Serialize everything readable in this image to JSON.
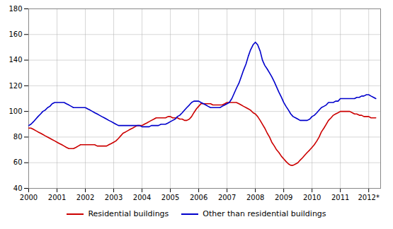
{
  "chart_data": {
    "type": "line",
    "x": [
      2000.0,
      2000.08,
      2000.17,
      2000.25,
      2000.33,
      2000.42,
      2000.5,
      2000.58,
      2000.67,
      2000.75,
      2000.83,
      2000.92,
      2001.0,
      2001.08,
      2001.17,
      2001.25,
      2001.33,
      2001.42,
      2001.5,
      2001.58,
      2001.67,
      2001.75,
      2001.83,
      2001.92,
      2002.0,
      2002.08,
      2002.17,
      2002.25,
      2002.33,
      2002.42,
      2002.5,
      2002.58,
      2002.67,
      2002.75,
      2002.83,
      2002.92,
      2003.0,
      2003.08,
      2003.17,
      2003.25,
      2003.33,
      2003.42,
      2003.5,
      2003.58,
      2003.67,
      2003.75,
      2003.83,
      2003.92,
      2004.0,
      2004.08,
      2004.17,
      2004.25,
      2004.33,
      2004.42,
      2004.5,
      2004.58,
      2004.67,
      2004.75,
      2004.83,
      2004.92,
      2005.0,
      2005.08,
      2005.17,
      2005.25,
      2005.33,
      2005.42,
      2005.5,
      2005.58,
      2005.67,
      2005.75,
      2005.83,
      2005.92,
      2006.0,
      2006.08,
      2006.17,
      2006.25,
      2006.33,
      2006.42,
      2006.5,
      2006.58,
      2006.67,
      2006.75,
      2006.83,
      2006.92,
      2007.0,
      2007.08,
      2007.17,
      2007.25,
      2007.33,
      2007.42,
      2007.5,
      2007.58,
      2007.67,
      2007.75,
      2007.83,
      2007.92,
      2008.0,
      2008.08,
      2008.17,
      2008.25,
      2008.33,
      2008.42,
      2008.5,
      2008.58,
      2008.67,
      2008.75,
      2008.83,
      2008.92,
      2009.0,
      2009.08,
      2009.17,
      2009.25,
      2009.33,
      2009.42,
      2009.5,
      2009.58,
      2009.67,
      2009.75,
      2009.83,
      2009.92,
      2010.0,
      2010.08,
      2010.17,
      2010.25,
      2010.33,
      2010.42,
      2010.5,
      2010.58,
      2010.67,
      2010.75,
      2010.83,
      2010.92,
      2011.0,
      2011.08,
      2011.17,
      2011.25,
      2011.33,
      2011.42,
      2011.5,
      2011.58,
      2011.67,
      2011.75,
      2011.83,
      2011.92,
      2012.0,
      2012.08,
      2012.17,
      2012.25
    ],
    "series": [
      {
        "name": "Residential buildings",
        "color": "#cc0000",
        "values": [
          87,
          87,
          86,
          85,
          84,
          83,
          82,
          81,
          80,
          79,
          78,
          77,
          76,
          75,
          74,
          73,
          72,
          71,
          71,
          71,
          72,
          73,
          74,
          74,
          74,
          74,
          74,
          74,
          74,
          73,
          73,
          73,
          73,
          73,
          74,
          75,
          76,
          77,
          79,
          81,
          83,
          84,
          85,
          86,
          87,
          88,
          89,
          89,
          89,
          90,
          91,
          92,
          93,
          94,
          95,
          95,
          95,
          95,
          95,
          96,
          96,
          95,
          95,
          95,
          94,
          94,
          93,
          93,
          94,
          96,
          99,
          102,
          104,
          106,
          106,
          106,
          106,
          106,
          105,
          105,
          105,
          105,
          105,
          106,
          107,
          107,
          107,
          107,
          107,
          106,
          105,
          104,
          103,
          102,
          101,
          99,
          98,
          96,
          93,
          90,
          87,
          83,
          80,
          76,
          73,
          70,
          68,
          65,
          63,
          61,
          59,
          58,
          58,
          59,
          60,
          62,
          64,
          66,
          68,
          70,
          72,
          74,
          77,
          80,
          84,
          87,
          90,
          93,
          95,
          97,
          98,
          99,
          100,
          100,
          100,
          100,
          100,
          99,
          98,
          98,
          97,
          97,
          96,
          96,
          96,
          95,
          95,
          95
        ]
      },
      {
        "name": "Other than residential buildings",
        "color": "#0000cc",
        "values": [
          89,
          90,
          92,
          94,
          96,
          98,
          100,
          101,
          103,
          104,
          106,
          107,
          107,
          107,
          107,
          107,
          106,
          105,
          104,
          103,
          103,
          103,
          103,
          103,
          103,
          102,
          101,
          100,
          99,
          98,
          97,
          96,
          95,
          94,
          93,
          92,
          91,
          90,
          89,
          89,
          89,
          89,
          89,
          89,
          89,
          89,
          89,
          89,
          88,
          88,
          88,
          88,
          89,
          89,
          89,
          89,
          90,
          90,
          90,
          91,
          92,
          93,
          94,
          96,
          97,
          99,
          101,
          103,
          105,
          107,
          108,
          108,
          108,
          107,
          106,
          105,
          104,
          103,
          103,
          103,
          103,
          103,
          104,
          105,
          106,
          107,
          110,
          114,
          118,
          122,
          127,
          132,
          137,
          143,
          148,
          152,
          154,
          152,
          147,
          140,
          136,
          133,
          130,
          127,
          123,
          119,
          115,
          111,
          107,
          104,
          101,
          98,
          96,
          95,
          94,
          93,
          93,
          93,
          93,
          94,
          96,
          97,
          99,
          101,
          103,
          104,
          105,
          107,
          107,
          107,
          108,
          108,
          110,
          110,
          110,
          110,
          110,
          110,
          110,
          111,
          111,
          112,
          112,
          113,
          113,
          112,
          111,
          110
        ]
      }
    ],
    "xlim": [
      2000,
      2012.42
    ],
    "xticks": [
      2000,
      2001,
      2002,
      2003,
      2004,
      2005,
      2006,
      2007,
      2008,
      2009,
      2010,
      2011,
      {
        "value": 2012,
        "label": "2012*"
      }
    ],
    "ylim": [
      40,
      180
    ],
    "yticks": [
      40,
      60,
      80,
      100,
      120,
      140,
      160,
      180
    ],
    "grid": true,
    "legend": "bottom"
  }
}
